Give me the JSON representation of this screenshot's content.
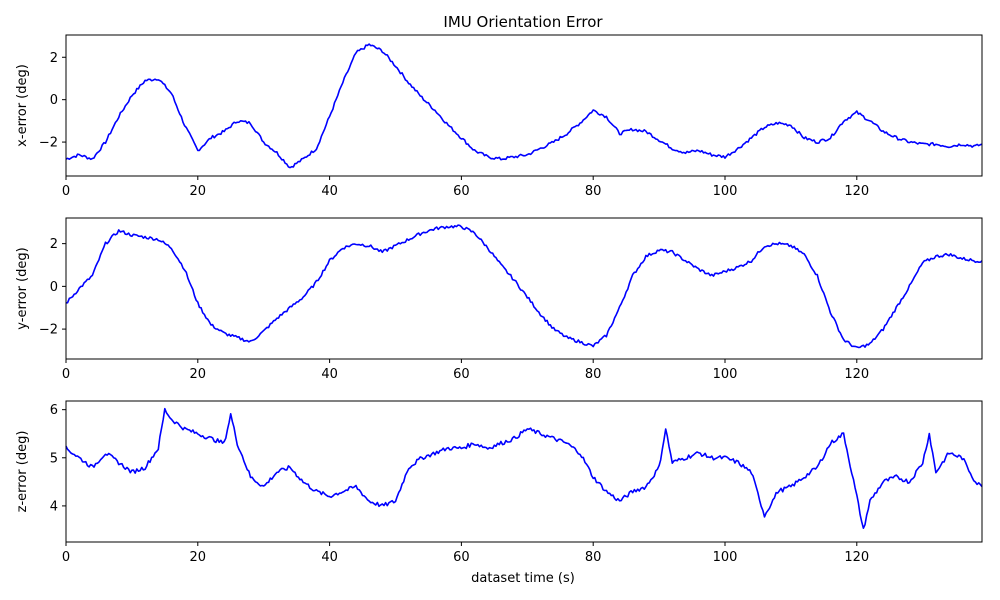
{
  "chart_data": {
    "type": "line",
    "title": "IMU Orientation Error",
    "xlabel": "dataset time (s)",
    "xlim": [
      0,
      139
    ],
    "x_ticks": [
      0,
      20,
      40,
      60,
      80,
      100,
      120
    ],
    "line_color": "#0000ff",
    "grid": false,
    "subplots": [
      {
        "name": "x",
        "ylabel": "x-error (deg)",
        "ylim": [
          -3.6,
          3.05
        ],
        "y_ticks": [
          -2,
          0,
          2
        ],
        "x": [
          0,
          2,
          4,
          6,
          8,
          10,
          12,
          14,
          16,
          18,
          20,
          22,
          24,
          26,
          28,
          30,
          32,
          34,
          36,
          38,
          40,
          42,
          44,
          46,
          48,
          50,
          52,
          54,
          56,
          58,
          60,
          62,
          64,
          66,
          68,
          70,
          72,
          74,
          76,
          78,
          80,
          82,
          84,
          86,
          88,
          90,
          92,
          94,
          96,
          98,
          100,
          102,
          104,
          106,
          108,
          110,
          112,
          114,
          116,
          118,
          120,
          122,
          124,
          126,
          128,
          130,
          132,
          134,
          136,
          138,
          139
        ],
        "values": [
          -2.8,
          -2.6,
          -2.8,
          -2.0,
          -0.8,
          0.2,
          0.9,
          1.0,
          0.3,
          -1.2,
          -2.4,
          -1.8,
          -1.5,
          -1.0,
          -1.1,
          -2.0,
          -2.5,
          -3.2,
          -2.8,
          -2.3,
          -0.8,
          0.8,
          2.2,
          2.6,
          2.3,
          1.6,
          0.8,
          0.1,
          -0.5,
          -1.2,
          -1.8,
          -2.4,
          -2.7,
          -2.8,
          -2.7,
          -2.6,
          -2.3,
          -2.0,
          -1.6,
          -1.1,
          -0.5,
          -0.8,
          -1.6,
          -1.4,
          -1.5,
          -1.9,
          -2.3,
          -2.5,
          -2.4,
          -2.6,
          -2.7,
          -2.3,
          -1.8,
          -1.3,
          -1.1,
          -1.2,
          -1.8,
          -2.0,
          -1.8,
          -1.0,
          -0.6,
          -1.0,
          -1.5,
          -1.8,
          -2.0,
          -2.1,
          -2.1,
          -2.2,
          -2.1,
          -2.2,
          -2.1
        ]
      },
      {
        "name": "y",
        "ylabel": "y-error (deg)",
        "ylim": [
          -3.4,
          3.2
        ],
        "y_ticks": [
          -2,
          0,
          2
        ],
        "x": [
          0,
          2,
          4,
          6,
          8,
          10,
          12,
          14,
          16,
          18,
          20,
          22,
          24,
          26,
          28,
          30,
          32,
          34,
          36,
          38,
          40,
          42,
          44,
          46,
          48,
          50,
          52,
          54,
          56,
          58,
          60,
          62,
          64,
          66,
          68,
          70,
          72,
          74,
          76,
          78,
          80,
          82,
          84,
          86,
          88,
          90,
          92,
          94,
          96,
          98,
          100,
          102,
          104,
          106,
          108,
          110,
          112,
          114,
          116,
          118,
          120,
          122,
          124,
          126,
          128,
          130,
          132,
          134,
          136,
          138,
          139
        ],
        "values": [
          -0.8,
          -0.1,
          0.5,
          2.0,
          2.6,
          2.4,
          2.3,
          2.2,
          1.8,
          0.8,
          -0.8,
          -1.8,
          -2.2,
          -2.4,
          -2.6,
          -2.1,
          -1.5,
          -1.0,
          -0.5,
          0.2,
          1.2,
          1.8,
          2.0,
          1.9,
          1.6,
          1.9,
          2.2,
          2.5,
          2.7,
          2.8,
          2.8,
          2.5,
          1.8,
          1.0,
          0.3,
          -0.5,
          -1.3,
          -2.0,
          -2.4,
          -2.6,
          -2.8,
          -2.3,
          -1.0,
          0.5,
          1.4,
          1.7,
          1.6,
          1.2,
          0.8,
          0.5,
          0.7,
          0.9,
          1.2,
          1.9,
          2.0,
          1.9,
          1.5,
          0.5,
          -1.2,
          -2.5,
          -2.9,
          -2.7,
          -2.0,
          -1.0,
          0.0,
          1.1,
          1.4,
          1.5,
          1.3,
          1.2,
          1.2
        ]
      },
      {
        "name": "z",
        "ylabel": "z-error (deg)",
        "ylim": [
          3.25,
          6.18
        ],
        "y_ticks": [
          4,
          5,
          6
        ],
        "x": [
          0,
          2,
          4,
          6,
          8,
          10,
          12,
          14,
          15,
          16,
          18,
          20,
          22,
          24,
          25,
          26,
          28,
          30,
          32,
          34,
          36,
          38,
          40,
          42,
          44,
          46,
          48,
          50,
          52,
          54,
          56,
          58,
          60,
          62,
          64,
          66,
          68,
          70,
          72,
          74,
          76,
          78,
          80,
          82,
          84,
          86,
          88,
          90,
          91,
          92,
          94,
          96,
          98,
          100,
          102,
          104,
          106,
          108,
          110,
          112,
          114,
          116,
          118,
          120,
          121,
          122,
          124,
          126,
          128,
          130,
          131,
          132,
          134,
          136,
          138,
          139
        ],
        "values": [
          5.2,
          5.0,
          4.8,
          5.1,
          4.9,
          4.7,
          4.8,
          5.2,
          6.0,
          5.8,
          5.6,
          5.5,
          5.4,
          5.3,
          5.9,
          5.3,
          4.6,
          4.4,
          4.7,
          4.8,
          4.5,
          4.3,
          4.2,
          4.3,
          4.4,
          4.1,
          4.0,
          4.1,
          4.8,
          5.0,
          5.1,
          5.2,
          5.2,
          5.3,
          5.2,
          5.3,
          5.4,
          5.6,
          5.5,
          5.4,
          5.3,
          5.1,
          4.6,
          4.3,
          4.1,
          4.3,
          4.4,
          4.8,
          5.6,
          4.9,
          5.0,
          5.1,
          5.0,
          5.0,
          4.9,
          4.7,
          3.8,
          4.3,
          4.4,
          4.6,
          4.8,
          5.3,
          5.5,
          4.2,
          3.5,
          4.1,
          4.5,
          4.6,
          4.5,
          4.9,
          5.5,
          4.7,
          5.1,
          5.0,
          4.5,
          4.4
        ]
      }
    ]
  }
}
